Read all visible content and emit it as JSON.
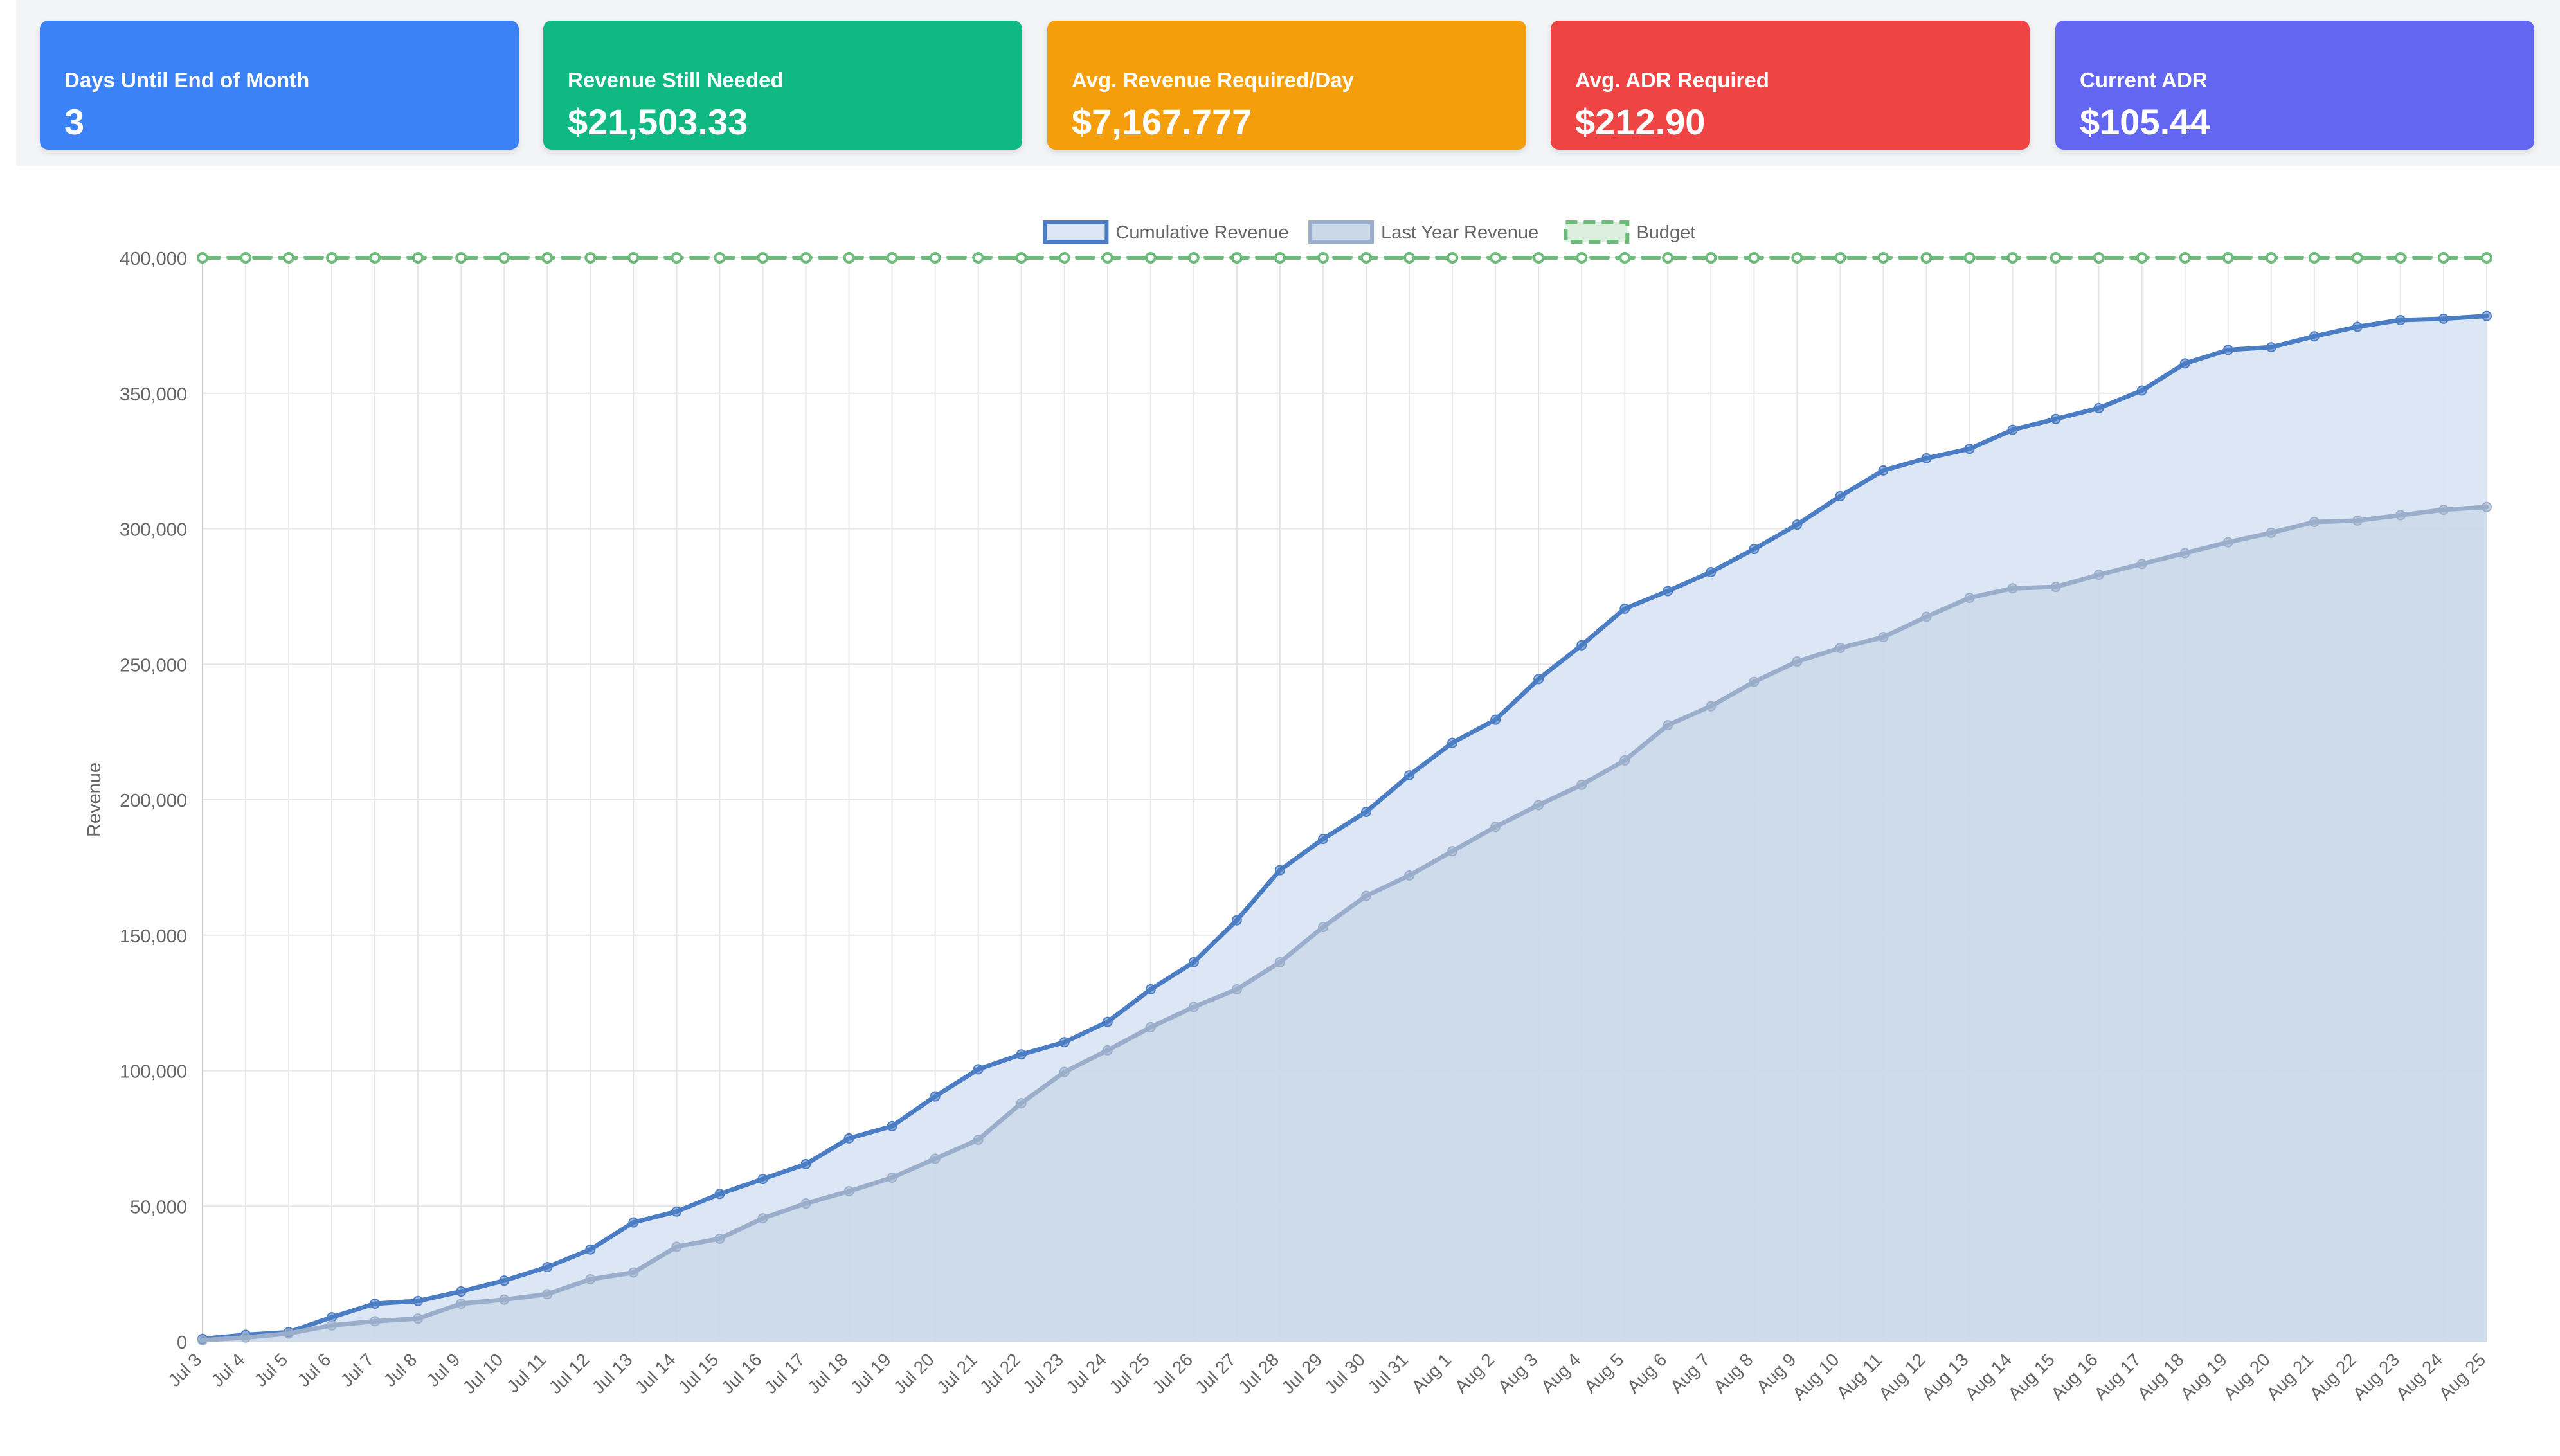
{
  "stats": [
    {
      "label": "Days Until End of Month",
      "value": "3",
      "color": "#3b82f6"
    },
    {
      "label": "Revenue Still Needed",
      "value": "$21,503.33",
      "color": "#10b981"
    },
    {
      "label": "Avg. Revenue Required/Day",
      "value": "$7,167.777",
      "color": "#f59e0b"
    },
    {
      "label": "Avg. ADR Required",
      "value": "$212.90",
      "color": "#ef4444"
    },
    {
      "label": "Current ADR",
      "value": "$105.44",
      "color": "#6366f1"
    }
  ],
  "chart_data": {
    "type": "line",
    "ylabel": "Revenue",
    "xlabel": "",
    "ylim": [
      0,
      400000
    ],
    "yticks": [
      0,
      50000,
      100000,
      150000,
      200000,
      250000,
      300000,
      350000,
      400000
    ],
    "ytick_labels": [
      "0",
      "50,000",
      "100,000",
      "150,000",
      "200,000",
      "250,000",
      "300,000",
      "350,000",
      "400,000"
    ],
    "grid": true,
    "legend_position": "top-center",
    "categories": [
      "Jul 3",
      "Jul 4",
      "Jul 5",
      "Jul 6",
      "Jul 7",
      "Jul 8",
      "Jul 9",
      "Jul 10",
      "Jul 11",
      "Jul 12",
      "Jul 13",
      "Jul 14",
      "Jul 15",
      "Jul 16",
      "Jul 17",
      "Jul 18",
      "Jul 19",
      "Jul 20",
      "Jul 21",
      "Jul 22",
      "Jul 23",
      "Jul 24",
      "Jul 25",
      "Jul 26",
      "Jul 27",
      "Jul 28",
      "Jul 29",
      "Jul 30",
      "Jul 31",
      "Aug 1",
      "Aug 2",
      "Aug 3",
      "Aug 4",
      "Aug 5",
      "Aug 6",
      "Aug 7",
      "Aug 8",
      "Aug 9",
      "Aug 10",
      "Aug 11",
      "Aug 12",
      "Aug 13",
      "Aug 14",
      "Aug 15",
      "Aug 16",
      "Aug 17",
      "Aug 18",
      "Aug 19",
      "Aug 20",
      "Aug 21",
      "Aug 22",
      "Aug 23",
      "Aug 24",
      "Aug 25"
    ],
    "series": [
      {
        "name": "Cumulative Revenue",
        "line_color": "#4a7dc4",
        "fill_color": "#dbe5f4",
        "dashed": false,
        "values": [
          1000,
          2500,
          3500,
          9000,
          14000,
          15000,
          18500,
          22500,
          27500,
          34000,
          44000,
          48000,
          54500,
          60000,
          65500,
          75000,
          79500,
          90500,
          100500,
          106000,
          110500,
          118000,
          130000,
          140000,
          155500,
          174000,
          185500,
          195500,
          209000,
          221000,
          229500,
          244500,
          257000,
          270500,
          277000,
          284000,
          292500,
          301500,
          312000,
          321500,
          326000,
          329500,
          336500,
          340500,
          344500,
          351000,
          361000,
          366000,
          367000,
          371000,
          374500,
          377000,
          377500,
          378500
        ]
      },
      {
        "name": "Last Year Revenue",
        "line_color": "#9aaecb",
        "fill_color": "#cbd8e8",
        "dashed": false,
        "values": [
          500,
          1500,
          3000,
          6000,
          7500,
          8500,
          14000,
          15500,
          17500,
          23000,
          25500,
          35000,
          38000,
          45500,
          51000,
          55500,
          60500,
          67500,
          74500,
          88000,
          99500,
          107500,
          116000,
          123500,
          130000,
          140000,
          153000,
          164500,
          172000,
          181000,
          190000,
          198000,
          205500,
          214500,
          227500,
          234500,
          243500,
          251000,
          256000,
          260000,
          267500,
          274500,
          278000,
          278500,
          283000,
          287000,
          291000,
          295000,
          298500,
          302500,
          303000,
          305000,
          307000,
          308000
        ]
      },
      {
        "name": "Budget",
        "line_color": "#6dbb7a",
        "fill_color": "#dcefdf",
        "dashed": true,
        "values": [
          400000,
          400000,
          400000,
          400000,
          400000,
          400000,
          400000,
          400000,
          400000,
          400000,
          400000,
          400000,
          400000,
          400000,
          400000,
          400000,
          400000,
          400000,
          400000,
          400000,
          400000,
          400000,
          400000,
          400000,
          400000,
          400000,
          400000,
          400000,
          400000,
          400000,
          400000,
          400000,
          400000,
          400000,
          400000,
          400000,
          400000,
          400000,
          400000,
          400000,
          400000,
          400000,
          400000,
          400000,
          400000,
          400000,
          400000,
          400000,
          400000,
          400000,
          400000,
          400000,
          400000,
          400000
        ]
      }
    ]
  }
}
